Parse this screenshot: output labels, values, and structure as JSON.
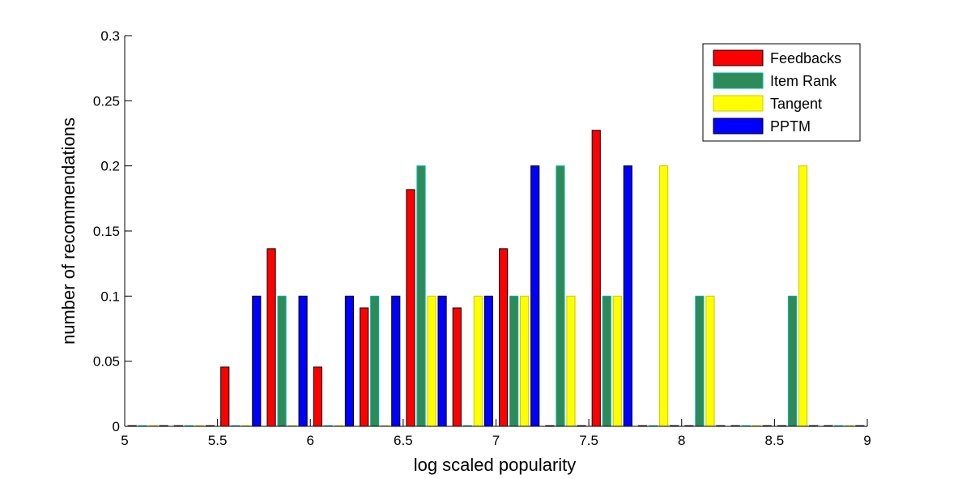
{
  "chart_data": {
    "type": "bar",
    "title": "",
    "xlabel": "log scaled popularity",
    "ylabel": "number of recommendations",
    "xlim": [
      5,
      9
    ],
    "ylim": [
      0,
      0.3
    ],
    "xticks": [
      "5",
      "5.5",
      "6",
      "6.5",
      "7",
      "7.5",
      "8",
      "8.5",
      "9"
    ],
    "yticks": [
      "0",
      "0.05",
      "0.1",
      "0.15",
      "0.2",
      "0.25",
      "0.3"
    ],
    "bin_centers": [
      5.125,
      5.375,
      5.625,
      5.875,
      6.125,
      6.375,
      6.625,
      6.875,
      7.125,
      7.375,
      7.625,
      7.875,
      8.125,
      8.375,
      8.625,
      8.875
    ],
    "legend_position": "top-right",
    "grid": false,
    "series": [
      {
        "name": "Feedbacks",
        "color": "#ff0000",
        "edge": "#000000",
        "values": [
          0,
          0,
          0.0455,
          0.1364,
          0.0455,
          0.0909,
          0.1818,
          0.0909,
          0.1364,
          0,
          0.2273,
          0,
          0,
          0,
          0,
          0
        ]
      },
      {
        "name": "Item Rank",
        "color": "#2e8b57",
        "edge": "#00b3b3",
        "values": [
          0,
          0,
          0,
          0.1,
          0,
          0.1,
          0.2,
          0,
          0.1,
          0.2,
          0.1,
          0,
          0.1,
          0,
          0.1,
          0
        ]
      },
      {
        "name": "Tangent",
        "color": "#ffff00",
        "edge": "#c8c800",
        "values": [
          0,
          0,
          0,
          0,
          0,
          0,
          0.1,
          0.1,
          0.1,
          0.1,
          0.1,
          0.2,
          0.1,
          0,
          0.2,
          0
        ]
      },
      {
        "name": "PPTM",
        "color": "#0000ff",
        "edge": "#000000",
        "values": [
          0,
          0,
          0.1,
          0.1,
          0.1,
          0.1,
          0.1,
          0.1,
          0.2,
          0,
          0.2,
          0,
          0,
          0,
          0,
          0
        ]
      }
    ]
  }
}
